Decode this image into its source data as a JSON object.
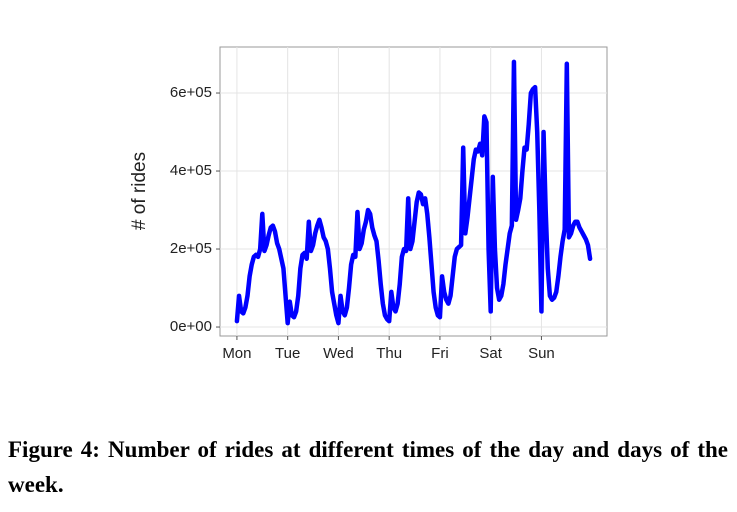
{
  "chart_data": {
    "type": "line",
    "ylabel": "# of rides",
    "x": [
      0,
      1,
      2,
      3,
      4,
      5,
      6,
      7,
      8,
      9,
      10,
      11,
      12,
      13,
      14,
      15,
      16,
      17,
      18,
      19,
      20,
      21,
      22,
      23,
      24,
      25,
      26,
      27,
      28,
      29,
      30,
      31,
      32,
      33,
      34,
      35,
      36,
      37,
      38,
      39,
      40,
      41,
      42,
      43,
      44,
      45,
      46,
      47,
      48,
      49,
      50,
      51,
      52,
      53,
      54,
      55,
      56,
      57,
      58,
      59,
      60,
      61,
      62,
      63,
      64,
      65,
      66,
      67,
      68,
      69,
      70,
      71,
      72,
      73,
      74,
      75,
      76,
      77,
      78,
      79,
      80,
      81,
      82,
      83,
      84,
      85,
      86,
      87,
      88,
      89,
      90,
      91,
      92,
      93,
      94,
      95,
      96,
      97,
      98,
      99,
      100,
      101,
      102,
      103,
      104,
      105,
      106,
      107,
      108,
      109,
      110,
      111,
      112,
      113,
      114,
      115,
      116,
      117,
      118,
      119,
      120,
      121,
      122,
      123,
      124,
      125,
      126,
      127,
      128,
      129,
      130,
      131,
      132,
      133,
      134,
      135,
      136,
      137,
      138,
      139,
      140,
      141,
      142,
      143,
      144,
      145,
      146,
      147,
      148,
      149,
      150,
      151,
      152,
      153,
      154,
      155,
      156,
      157,
      158,
      159,
      160,
      161,
      162,
      163,
      164,
      165,
      166,
      167
    ],
    "series": [
      {
        "color": "#0000ff",
        "values": [
          15000,
          80000,
          40000,
          35000,
          50000,
          80000,
          130000,
          160000,
          180000,
          185000,
          180000,
          200000,
          290000,
          195000,
          210000,
          235000,
          255000,
          260000,
          245000,
          215000,
          200000,
          175000,
          150000,
          80000,
          10000,
          65000,
          30000,
          25000,
          40000,
          80000,
          150000,
          185000,
          190000,
          175000,
          270000,
          195000,
          210000,
          240000,
          260000,
          275000,
          255000,
          230000,
          220000,
          200000,
          150000,
          90000,
          60000,
          30000,
          10000,
          80000,
          40000,
          30000,
          50000,
          100000,
          160000,
          185000,
          180000,
          295000,
          200000,
          215000,
          250000,
          270000,
          300000,
          290000,
          255000,
          235000,
          220000,
          170000,
          110000,
          60000,
          30000,
          20000,
          15000,
          90000,
          50000,
          40000,
          60000,
          110000,
          180000,
          200000,
          195000,
          330000,
          200000,
          220000,
          270000,
          320000,
          345000,
          340000,
          315000,
          330000,
          290000,
          230000,
          160000,
          90000,
          50000,
          30000,
          25000,
          130000,
          90000,
          70000,
          60000,
          80000,
          130000,
          180000,
          200000,
          205000,
          210000,
          460000,
          240000,
          280000,
          330000,
          380000,
          430000,
          455000,
          450000,
          470000,
          440000,
          540000,
          525000,
          200000,
          40000,
          385000,
          200000,
          100000,
          70000,
          80000,
          110000,
          160000,
          200000,
          240000,
          260000,
          680000,
          275000,
          300000,
          330000,
          400000,
          460000,
          455000,
          520000,
          600000,
          610000,
          615000,
          500000,
          300000,
          40000,
          500000,
          300000,
          150000,
          80000,
          70000,
          75000,
          90000,
          130000,
          180000,
          220000,
          250000,
          675000,
          230000,
          240000,
          260000,
          270000,
          270000,
          255000,
          245000,
          235000,
          225000,
          210000,
          175000
        ]
      }
    ],
    "xlim": [
      -8,
      175
    ],
    "xticks": [
      {
        "value": 0,
        "label": "Mon"
      },
      {
        "value": 24,
        "label": "Tue"
      },
      {
        "value": 48,
        "label": "Wed"
      },
      {
        "value": 72,
        "label": "Thu"
      },
      {
        "value": 96,
        "label": "Fri"
      },
      {
        "value": 120,
        "label": "Sat"
      },
      {
        "value": 144,
        "label": "Sun"
      }
    ],
    "ylim": [
      -23000,
      718000
    ],
    "yticks": [
      {
        "value": 0,
        "label": "0e+00"
      },
      {
        "value": 200000,
        "label": "2e+05"
      },
      {
        "value": 400000,
        "label": "4e+05"
      },
      {
        "value": 600000,
        "label": "6e+05"
      }
    ],
    "grid": true
  },
  "caption": "Figure 4: Number of rides at different times of the day and days of the week."
}
